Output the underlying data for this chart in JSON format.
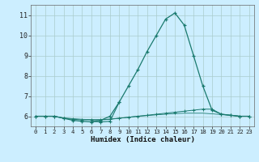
{
  "xlabel": "Humidex (Indice chaleur)",
  "background_color": "#cceeff",
  "line_color": "#1a7a6e",
  "grid_color": "#aacccc",
  "xlim_min": -0.5,
  "xlim_max": 23.5,
  "ylim_min": 5.5,
  "ylim_max": 11.5,
  "yticks": [
    6,
    7,
    8,
    9,
    10,
    11
  ],
  "xticks": [
    0,
    1,
    2,
    3,
    4,
    5,
    6,
    7,
    8,
    9,
    10,
    11,
    12,
    13,
    14,
    15,
    16,
    17,
    18,
    19,
    20,
    21,
    22,
    23
  ],
  "series_main": [
    [
      0,
      6.0
    ],
    [
      1,
      6.0
    ],
    [
      2,
      6.0
    ],
    [
      3,
      5.9
    ],
    [
      4,
      5.8
    ],
    [
      5,
      5.75
    ],
    [
      6,
      5.72
    ],
    [
      7,
      5.8
    ],
    [
      8,
      6.0
    ],
    [
      9,
      6.7
    ],
    [
      10,
      7.5
    ],
    [
      11,
      8.3
    ],
    [
      12,
      9.2
    ],
    [
      13,
      10.0
    ],
    [
      14,
      10.8
    ],
    [
      15,
      11.1
    ],
    [
      16,
      10.5
    ],
    [
      17,
      9.0
    ],
    [
      18,
      7.5
    ],
    [
      19,
      6.3
    ],
    [
      20,
      6.1
    ],
    [
      21,
      6.05
    ],
    [
      22,
      6.0
    ],
    [
      23,
      6.0
    ]
  ],
  "series_spike": [
    [
      6,
      5.75
    ],
    [
      7,
      5.72
    ],
    [
      8,
      5.75
    ],
    [
      9,
      6.7
    ]
  ],
  "series_flat1": [
    [
      0,
      6.0
    ],
    [
      1,
      6.0
    ],
    [
      2,
      6.0
    ],
    [
      3,
      5.9
    ],
    [
      4,
      5.85
    ],
    [
      5,
      5.82
    ],
    [
      6,
      5.82
    ],
    [
      7,
      5.82
    ],
    [
      8,
      5.85
    ],
    [
      9,
      5.9
    ],
    [
      10,
      5.95
    ],
    [
      11,
      6.0
    ],
    [
      12,
      6.05
    ],
    [
      13,
      6.1
    ],
    [
      14,
      6.15
    ],
    [
      15,
      6.2
    ],
    [
      16,
      6.25
    ],
    [
      17,
      6.3
    ],
    [
      18,
      6.35
    ],
    [
      19,
      6.35
    ],
    [
      20,
      6.1
    ],
    [
      21,
      6.05
    ],
    [
      22,
      6.0
    ],
    [
      23,
      6.0
    ]
  ],
  "series_flat2": [
    [
      0,
      6.0
    ],
    [
      1,
      6.0
    ],
    [
      2,
      6.0
    ],
    [
      3,
      5.92
    ],
    [
      4,
      5.88
    ],
    [
      5,
      5.85
    ],
    [
      6,
      5.83
    ],
    [
      7,
      5.83
    ],
    [
      8,
      5.86
    ],
    [
      9,
      5.9
    ],
    [
      10,
      5.95
    ],
    [
      11,
      6.0
    ],
    [
      12,
      6.03
    ],
    [
      13,
      6.07
    ],
    [
      14,
      6.1
    ],
    [
      15,
      6.13
    ],
    [
      16,
      6.15
    ],
    [
      17,
      6.15
    ],
    [
      18,
      6.15
    ],
    [
      19,
      6.12
    ],
    [
      20,
      6.08
    ],
    [
      21,
      6.04
    ],
    [
      22,
      6.0
    ],
    [
      23,
      6.0
    ]
  ]
}
